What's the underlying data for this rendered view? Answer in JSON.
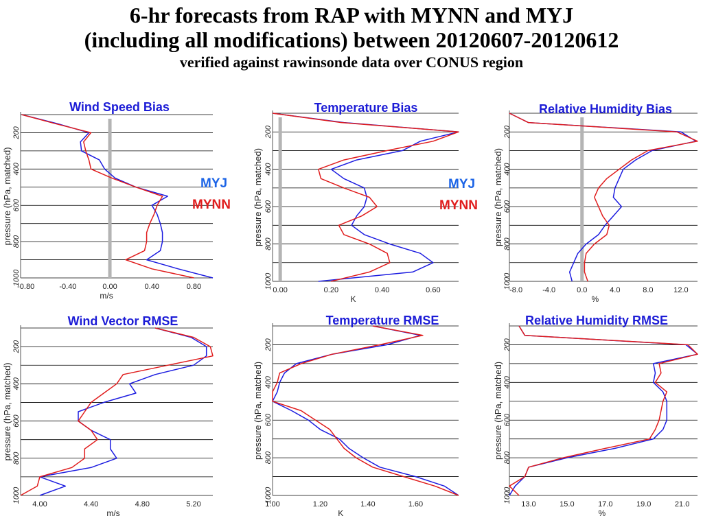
{
  "title": {
    "line1": "6-hr forecasts from RAP with MYNN and MYJ",
    "line2": "(including all modifications) between 20120607-20120612",
    "subtitle": "verified against rawinsonde data over CONUS region"
  },
  "colors": {
    "MYJ": "#1c1ce0",
    "MYNN": "#e01c1c",
    "zero_line": "#b4b4b4",
    "grid": "#000000",
    "title_text": "#1c1cd6"
  },
  "legends": [
    {
      "myj": "MYJ",
      "mynn": "MYNN"
    },
    {
      "myj": "MYJ",
      "mynn": "MYNN"
    }
  ],
  "chart_data": [
    {
      "type": "line",
      "title": "Wind Speed Bias",
      "xlabel": "m/s",
      "ylabel": "pressure (hPa, matched)",
      "xlim": [
        -0.85,
        0.98
      ],
      "ylim": [
        1000,
        100
      ],
      "xticks": [
        "-0.80",
        "-0.40",
        "0.00",
        "0.40",
        "0.80"
      ],
      "xtick_values": [
        -0.8,
        -0.4,
        0.0,
        0.4,
        0.8
      ],
      "yticks": [
        "200",
        "400",
        "600",
        "800",
        "1000"
      ],
      "ytick_values": [
        200,
        400,
        600,
        800,
        1000
      ],
      "pressure_levels": [
        100,
        150,
        200,
        250,
        300,
        350,
        400,
        450,
        500,
        550,
        600,
        650,
        700,
        750,
        800,
        850,
        900,
        950,
        1000
      ],
      "zero_line": 0,
      "grid": true,
      "series": [
        {
          "name": "MYJ",
          "x": [
            -0.84,
            -0.5,
            -0.2,
            -0.28,
            -0.27,
            -0.1,
            -0.05,
            0.05,
            0.25,
            0.55,
            0.4,
            0.45,
            0.48,
            0.5,
            0.5,
            0.48,
            0.35,
            0.65,
            0.98
          ]
        },
        {
          "name": "MYNN",
          "x": [
            -0.84,
            -0.52,
            -0.18,
            -0.25,
            -0.23,
            -0.2,
            -0.18,
            0.02,
            0.25,
            0.5,
            0.45,
            0.42,
            0.38,
            0.35,
            0.35,
            0.33,
            0.15,
            0.4,
            0.8
          ]
        }
      ]
    },
    {
      "type": "line",
      "title": "Temperature Bias",
      "xlabel": "K",
      "ylabel": "pressure (hPa, matched)",
      "xlim": [
        -0.03,
        0.7
      ],
      "ylim": [
        1000,
        100
      ],
      "xticks": [
        "0.00",
        "0.20",
        "0.40",
        "0.60"
      ],
      "xtick_values": [
        0.0,
        0.2,
        0.4,
        0.6
      ],
      "yticks": [
        "200",
        "400",
        "600",
        "800",
        "1000"
      ],
      "ytick_values": [
        200,
        400,
        600,
        800,
        1000
      ],
      "pressure_levels": [
        100,
        150,
        200,
        250,
        300,
        350,
        400,
        450,
        500,
        550,
        600,
        650,
        700,
        750,
        800,
        850,
        900,
        950,
        1000
      ],
      "zero_line": 0,
      "grid": true,
      "series": [
        {
          "name": "MYJ",
          "x": [
            -0.03,
            0.25,
            0.7,
            0.55,
            0.48,
            0.3,
            0.2,
            0.25,
            0.33,
            0.34,
            0.33,
            0.3,
            0.28,
            0.33,
            0.43,
            0.55,
            0.6,
            0.52,
            0.15
          ]
        },
        {
          "name": "MYNN",
          "x": [
            -0.03,
            0.24,
            0.7,
            0.6,
            0.42,
            0.25,
            0.15,
            0.16,
            0.25,
            0.35,
            0.38,
            0.32,
            0.23,
            0.25,
            0.35,
            0.42,
            0.43,
            0.35,
            0.2
          ]
        }
      ]
    },
    {
      "type": "line",
      "title": "Relative Humidity Bias",
      "xlabel": "%",
      "ylabel": "pressure (hPa, matched)",
      "xlim": [
        -8.8,
        14
      ],
      "ylim": [
        1000,
        100
      ],
      "xticks": [
        "-8.0",
        "-4.0",
        "0.0",
        "4.0",
        "8.0",
        "12.0"
      ],
      "xtick_values": [
        -8,
        -4,
        0,
        4,
        8,
        12
      ],
      "yticks": [
        "200",
        "400",
        "600",
        "800",
        "1000"
      ],
      "ytick_values": [
        200,
        400,
        600,
        800,
        1000
      ],
      "pressure_levels": [
        100,
        150,
        200,
        250,
        300,
        350,
        400,
        450,
        500,
        550,
        600,
        650,
        700,
        750,
        800,
        850,
        900,
        950,
        1000
      ],
      "zero_line": 0,
      "grid": true,
      "series": [
        {
          "name": "MYJ",
          "x": [
            -8.8,
            -6.5,
            12,
            13.8,
            8.5,
            6.5,
            5,
            4.5,
            4,
            3.8,
            4.8,
            3.8,
            2.8,
            2,
            0.5,
            -0.5,
            -1,
            -1.5,
            -1.2
          ]
        },
        {
          "name": "MYNN",
          "x": [
            -8.8,
            -6.5,
            11.5,
            14,
            8,
            6,
            4.5,
            3,
            2,
            1.5,
            2,
            2.5,
            3.3,
            3,
            1.5,
            0.5,
            0.3,
            0.3,
            0.7
          ]
        }
      ]
    },
    {
      "type": "line",
      "title": "Wind Vector RMSE",
      "xlabel": "m/s",
      "ylabel": "pressure (hPa, matched)",
      "xlim": [
        3.85,
        5.35
      ],
      "ylim": [
        1000,
        100
      ],
      "xticks": [
        "4.00",
        "4.40",
        "4.80",
        "5.20"
      ],
      "xtick_values": [
        4.0,
        4.4,
        4.8,
        5.2
      ],
      "yticks": [
        "200",
        "400",
        "600",
        "800",
        "1000"
      ],
      "ytick_values": [
        200,
        400,
        600,
        800,
        1000
      ],
      "pressure_levels": [
        100,
        150,
        200,
        250,
        300,
        350,
        400,
        450,
        500,
        550,
        600,
        650,
        700,
        750,
        800,
        850,
        900,
        950,
        1000
      ],
      "grid": true,
      "series": [
        {
          "name": "MYJ",
          "x": [
            4.9,
            5.18,
            5.3,
            5.3,
            5.2,
            4.9,
            4.7,
            4.75,
            4.5,
            4.3,
            4.3,
            4.4,
            4.55,
            4.55,
            4.6,
            4.4,
            4.0,
            4.2,
            4.0
          ]
        },
        {
          "name": "MYNN",
          "x": [
            4.9,
            5.2,
            5.33,
            5.35,
            5.0,
            4.65,
            4.6,
            4.5,
            4.4,
            4.35,
            4.3,
            4.4,
            4.45,
            4.35,
            4.35,
            4.25,
            4.0,
            3.98,
            3.85
          ]
        }
      ]
    },
    {
      "type": "line",
      "title": "Temperature RMSE",
      "xlabel": "K",
      "ylabel": "pressure (hPa, matched)",
      "xlim": [
        1.0,
        1.78
      ],
      "ylim": [
        1000,
        100
      ],
      "xticks": [
        "1.00",
        "1.20",
        "1.40",
        "1.60"
      ],
      "xtick_values": [
        1.0,
        1.2,
        1.4,
        1.6
      ],
      "yticks": [
        "200",
        "400",
        "600",
        "800",
        "1000"
      ],
      "ytick_values": [
        200,
        400,
        600,
        800,
        1000
      ],
      "pressure_levels": [
        100,
        150,
        200,
        250,
        300,
        350,
        400,
        450,
        500,
        550,
        600,
        650,
        700,
        750,
        800,
        850,
        900,
        950,
        1000
      ],
      "grid": true,
      "series": [
        {
          "name": "MYJ",
          "x": [
            1.42,
            1.62,
            1.48,
            1.25,
            1.1,
            1.05,
            1.03,
            1.02,
            1.0,
            1.08,
            1.15,
            1.2,
            1.28,
            1.32,
            1.38,
            1.45,
            1.6,
            1.72,
            1.78
          ]
        },
        {
          "name": "MYNN",
          "x": [
            1.42,
            1.63,
            1.45,
            1.25,
            1.12,
            1.03,
            1.02,
            1.0,
            1.0,
            1.12,
            1.18,
            1.24,
            1.27,
            1.3,
            1.35,
            1.42,
            1.55,
            1.68,
            1.78
          ]
        }
      ]
    },
    {
      "type": "line",
      "title": "Relative Humidity RMSE",
      "xlabel": "%",
      "ylabel": "pressure (hPa, matched)",
      "xlim": [
        12.0,
        21.8
      ],
      "ylim": [
        1000,
        100
      ],
      "xticks": [
        "13.0",
        "15.0",
        "17.0",
        "19.0",
        "21.0"
      ],
      "xtick_values": [
        13,
        15,
        17,
        19,
        21
      ],
      "yticks": [
        "200",
        "400",
        "600",
        "800",
        "1000"
      ],
      "ytick_values": [
        200,
        400,
        600,
        800,
        1000
      ],
      "pressure_levels": [
        100,
        150,
        200,
        250,
        300,
        350,
        400,
        450,
        500,
        550,
        600,
        650,
        700,
        750,
        800,
        850,
        900,
        950,
        1000
      ],
      "grid": true,
      "series": [
        {
          "name": "MYJ",
          "x": [
            12.5,
            12.8,
            21.2,
            21.8,
            19.5,
            19.6,
            19.5,
            20.0,
            20.2,
            20.2,
            20.2,
            20.0,
            19.5,
            17.5,
            15.0,
            13.0,
            12.8,
            12.3,
            12.0
          ]
        },
        {
          "name": "MYNN",
          "x": [
            12.5,
            12.8,
            21.3,
            21.8,
            19.8,
            19.9,
            19.6,
            20.2,
            20.0,
            19.9,
            19.8,
            19.6,
            19.3,
            17.0,
            14.8,
            13.0,
            12.8,
            12.0,
            12.5
          ]
        }
      ]
    }
  ]
}
